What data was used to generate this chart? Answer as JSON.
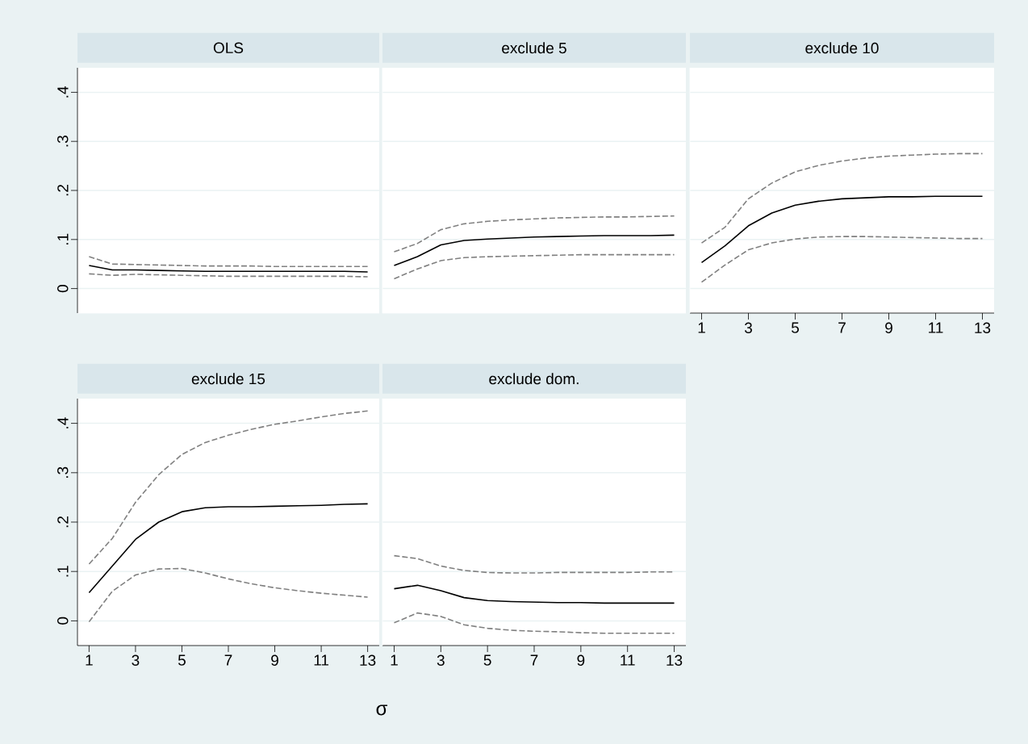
{
  "chart_data": [
    {
      "type": "line",
      "title": "OLS",
      "x": [
        1,
        2,
        3,
        4,
        5,
        6,
        7,
        8,
        9,
        10,
        11,
        12,
        13
      ],
      "xlim": [
        0.5,
        13.5
      ],
      "xticks": [
        1,
        3,
        5,
        7,
        9,
        11,
        13
      ],
      "ylim": [
        -0.05,
        0.45
      ],
      "yticks": [
        {
          "value": 0,
          "label": "0"
        },
        {
          "value": 0.1,
          "label": ".1"
        },
        {
          "value": 0.2,
          "label": ".2"
        },
        {
          "value": 0.3,
          "label": ".3"
        },
        {
          "value": 0.4,
          "label": ".4"
        }
      ],
      "grid": "y",
      "tick_labels": "y",
      "series": [
        {
          "color": "#000000",
          "line_style": "solid",
          "values": [
            0.047,
            0.038,
            0.038,
            0.037,
            0.036,
            0.035,
            0.035,
            0.035,
            0.035,
            0.035,
            0.035,
            0.035,
            0.034
          ]
        },
        {
          "color": "#808080",
          "line_style": "dashed",
          "values": [
            0.065,
            0.05,
            0.049,
            0.048,
            0.047,
            0.046,
            0.046,
            0.046,
            0.045,
            0.045,
            0.045,
            0.045,
            0.045
          ]
        },
        {
          "color": "#808080",
          "line_style": "dashed",
          "values": [
            0.03,
            0.027,
            0.029,
            0.028,
            0.027,
            0.026,
            0.025,
            0.025,
            0.025,
            0.025,
            0.025,
            0.025,
            0.024
          ]
        }
      ]
    },
    {
      "type": "line",
      "title": "exclude 5",
      "x": [
        1,
        2,
        3,
        4,
        5,
        6,
        7,
        8,
        9,
        10,
        11,
        12,
        13
      ],
      "xlim": [
        0.5,
        13.5
      ],
      "xticks": [
        1,
        3,
        5,
        7,
        9,
        11,
        13
      ],
      "ylim": [
        -0.05,
        0.45
      ],
      "yticks": [
        0,
        0.1,
        0.2,
        0.3,
        0.4
      ],
      "grid": "y",
      "tick_labels": false,
      "series": [
        {
          "color": "#000000",
          "line_style": "solid",
          "values": [
            0.047,
            0.065,
            0.089,
            0.098,
            0.101,
            0.103,
            0.105,
            0.106,
            0.107,
            0.108,
            0.108,
            0.108,
            0.109
          ]
        },
        {
          "color": "#808080",
          "line_style": "dashed",
          "values": [
            0.075,
            0.092,
            0.12,
            0.132,
            0.137,
            0.14,
            0.142,
            0.144,
            0.145,
            0.146,
            0.146,
            0.147,
            0.148
          ]
        },
        {
          "color": "#808080",
          "line_style": "dashed",
          "values": [
            0.02,
            0.04,
            0.057,
            0.063,
            0.065,
            0.066,
            0.067,
            0.068,
            0.069,
            0.069,
            0.069,
            0.069,
            0.069
          ]
        }
      ]
    },
    {
      "type": "line",
      "title": "exclude 10",
      "x": [
        1,
        2,
        3,
        4,
        5,
        6,
        7,
        8,
        9,
        10,
        11,
        12,
        13
      ],
      "xlim": [
        0.5,
        13.5
      ],
      "xticks": [
        1,
        3,
        5,
        7,
        9,
        11,
        13
      ],
      "ylim": [
        -0.05,
        0.45
      ],
      "yticks": [
        0,
        0.1,
        0.2,
        0.3,
        0.4
      ],
      "grid": "y",
      "tick_labels": "x",
      "series": [
        {
          "color": "#000000",
          "line_style": "solid",
          "values": [
            0.053,
            0.087,
            0.128,
            0.154,
            0.17,
            0.178,
            0.183,
            0.185,
            0.187,
            0.187,
            0.188,
            0.188,
            0.188
          ]
        },
        {
          "color": "#808080",
          "line_style": "dashed",
          "values": [
            0.093,
            0.125,
            0.183,
            0.215,
            0.238,
            0.251,
            0.26,
            0.266,
            0.27,
            0.272,
            0.274,
            0.275,
            0.275
          ]
        },
        {
          "color": "#808080",
          "line_style": "dashed",
          "values": [
            0.013,
            0.048,
            0.079,
            0.093,
            0.101,
            0.105,
            0.106,
            0.106,
            0.105,
            0.104,
            0.103,
            0.102,
            0.102
          ]
        }
      ]
    },
    {
      "type": "line",
      "title": "exclude 15",
      "x": [
        1,
        2,
        3,
        4,
        5,
        6,
        7,
        8,
        9,
        10,
        11,
        12,
        13
      ],
      "xlim": [
        0.5,
        13.5
      ],
      "xticks": [
        1,
        3,
        5,
        7,
        9,
        11,
        13
      ],
      "ylim": [
        -0.05,
        0.45
      ],
      "yticks": [
        {
          "value": 0,
          "label": "0"
        },
        {
          "value": 0.1,
          "label": ".1"
        },
        {
          "value": 0.2,
          "label": ".2"
        },
        {
          "value": 0.3,
          "label": ".3"
        },
        {
          "value": 0.4,
          "label": ".4"
        }
      ],
      "grid": "y",
      "series": [
        {
          "color": "#000000",
          "line_style": "solid",
          "values": [
            0.057,
            0.111,
            0.165,
            0.2,
            0.221,
            0.229,
            0.231,
            0.231,
            0.232,
            0.233,
            0.234,
            0.236,
            0.237
          ]
        },
        {
          "color": "#808080",
          "line_style": "dashed",
          "values": [
            0.115,
            0.167,
            0.24,
            0.296,
            0.337,
            0.361,
            0.376,
            0.388,
            0.398,
            0.405,
            0.413,
            0.42,
            0.425
          ]
        },
        {
          "color": "#808080",
          "line_style": "dashed",
          "values": [
            -0.002,
            0.06,
            0.093,
            0.105,
            0.106,
            0.097,
            0.085,
            0.075,
            0.067,
            0.061,
            0.056,
            0.052,
            0.048
          ]
        }
      ]
    },
    {
      "type": "line",
      "title": "exclude dom.",
      "xlabel": "σ",
      "x": [
        1,
        2,
        3,
        4,
        5,
        6,
        7,
        8,
        9,
        10,
        11,
        12,
        13
      ],
      "xlim": [
        0.5,
        13.5
      ],
      "xticks": [
        1,
        3,
        5,
        7,
        9,
        11,
        13
      ],
      "ylim": [
        -0.05,
        0.45
      ],
      "yticks": [
        0,
        0.1,
        0.2,
        0.3,
        0.4
      ],
      "grid": "y",
      "tick_labels": "x",
      "series": [
        {
          "color": "#000000",
          "line_style": "solid",
          "values": [
            0.065,
            0.072,
            0.061,
            0.047,
            0.041,
            0.039,
            0.038,
            0.037,
            0.037,
            0.036,
            0.036,
            0.036,
            0.036
          ]
        },
        {
          "color": "#808080",
          "line_style": "dashed",
          "values": [
            0.132,
            0.126,
            0.111,
            0.102,
            0.098,
            0.097,
            0.097,
            0.098,
            0.098,
            0.098,
            0.098,
            0.099,
            0.099
          ]
        },
        {
          "color": "#808080",
          "line_style": "dashed",
          "values": [
            -0.004,
            0.016,
            0.009,
            -0.008,
            -0.015,
            -0.019,
            -0.021,
            -0.022,
            -0.024,
            -0.025,
            -0.025,
            -0.025,
            -0.025
          ]
        }
      ]
    }
  ]
}
